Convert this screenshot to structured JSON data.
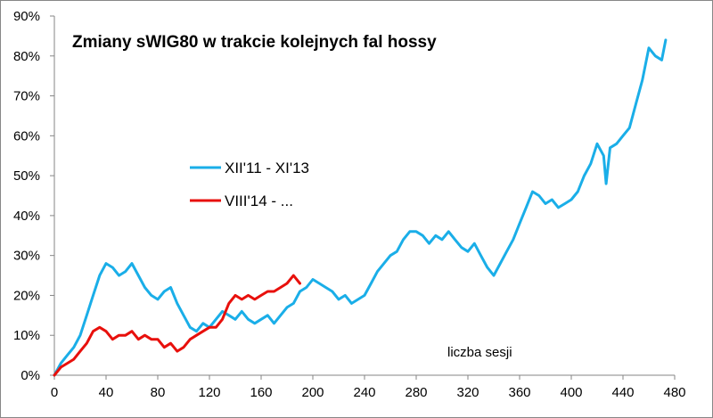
{
  "chart_data": {
    "type": "line",
    "title": "Zmiany sWIG80 w trakcie kolejnych fal hossy",
    "annotation": "liczba sesji",
    "xlim": [
      0,
      480
    ],
    "ylim": [
      0,
      0.9
    ],
    "x_ticks": [
      0,
      40,
      80,
      120,
      160,
      200,
      240,
      280,
      320,
      360,
      400,
      440,
      480
    ],
    "x_tick_labels": [
      "0",
      "40",
      "80",
      "120",
      "160",
      "200",
      "240",
      "280",
      "320",
      "360",
      "400",
      "440",
      "480"
    ],
    "y_ticks": [
      0,
      0.1,
      0.2,
      0.3,
      0.4,
      0.5,
      0.6,
      0.7,
      0.8,
      0.9
    ],
    "y_tick_labels": [
      "0%",
      "10%",
      "20%",
      "30%",
      "40%",
      "50%",
      "60%",
      "70%",
      "80%",
      "90%"
    ],
    "grid": false,
    "legend_position": "left-middle",
    "series": [
      {
        "name": "XII'11 - XI'13",
        "color": "#1AAEE8",
        "x": [
          0,
          5,
          10,
          15,
          20,
          25,
          30,
          35,
          40,
          45,
          50,
          55,
          60,
          65,
          70,
          75,
          80,
          85,
          90,
          95,
          100,
          105,
          110,
          115,
          120,
          125,
          130,
          135,
          140,
          145,
          150,
          155,
          160,
          165,
          170,
          175,
          180,
          185,
          190,
          195,
          200,
          205,
          210,
          215,
          220,
          225,
          230,
          235,
          240,
          245,
          250,
          255,
          260,
          265,
          270,
          275,
          280,
          285,
          290,
          295,
          300,
          305,
          310,
          315,
          320,
          325,
          330,
          335,
          340,
          345,
          350,
          355,
          360,
          365,
          370,
          375,
          380,
          385,
          390,
          395,
          400,
          405,
          410,
          415,
          420,
          425,
          427,
          430,
          435,
          440,
          445,
          450,
          455,
          460,
          465,
          470,
          473
        ],
        "values": [
          0.0,
          0.03,
          0.05,
          0.07,
          0.1,
          0.15,
          0.2,
          0.25,
          0.28,
          0.27,
          0.25,
          0.26,
          0.28,
          0.25,
          0.22,
          0.2,
          0.19,
          0.21,
          0.22,
          0.18,
          0.15,
          0.12,
          0.11,
          0.13,
          0.12,
          0.14,
          0.16,
          0.15,
          0.14,
          0.16,
          0.14,
          0.13,
          0.14,
          0.15,
          0.13,
          0.15,
          0.17,
          0.18,
          0.21,
          0.22,
          0.24,
          0.23,
          0.22,
          0.21,
          0.19,
          0.2,
          0.18,
          0.19,
          0.2,
          0.23,
          0.26,
          0.28,
          0.3,
          0.31,
          0.34,
          0.36,
          0.36,
          0.35,
          0.33,
          0.35,
          0.34,
          0.36,
          0.34,
          0.32,
          0.31,
          0.33,
          0.3,
          0.27,
          0.25,
          0.28,
          0.31,
          0.34,
          0.38,
          0.42,
          0.46,
          0.45,
          0.43,
          0.44,
          0.42,
          0.43,
          0.44,
          0.46,
          0.5,
          0.53,
          0.58,
          0.55,
          0.48,
          0.57,
          0.58,
          0.6,
          0.62,
          0.68,
          0.74,
          0.82,
          0.8,
          0.79,
          0.84
        ]
      },
      {
        "name": "VIII'14 - ...",
        "color": "#E8100C",
        "x": [
          0,
          5,
          10,
          15,
          20,
          25,
          30,
          35,
          40,
          45,
          50,
          55,
          60,
          65,
          70,
          75,
          80,
          85,
          90,
          95,
          100,
          105,
          110,
          115,
          120,
          125,
          130,
          135,
          140,
          145,
          150,
          155,
          160,
          165,
          170,
          175,
          180,
          185,
          190
        ],
        "values": [
          0.0,
          0.02,
          0.03,
          0.04,
          0.06,
          0.08,
          0.11,
          0.12,
          0.11,
          0.09,
          0.1,
          0.1,
          0.11,
          0.09,
          0.1,
          0.09,
          0.09,
          0.07,
          0.08,
          0.06,
          0.07,
          0.09,
          0.1,
          0.11,
          0.12,
          0.12,
          0.14,
          0.18,
          0.2,
          0.19,
          0.2,
          0.19,
          0.2,
          0.21,
          0.21,
          0.22,
          0.23,
          0.25,
          0.23
        ]
      }
    ]
  }
}
